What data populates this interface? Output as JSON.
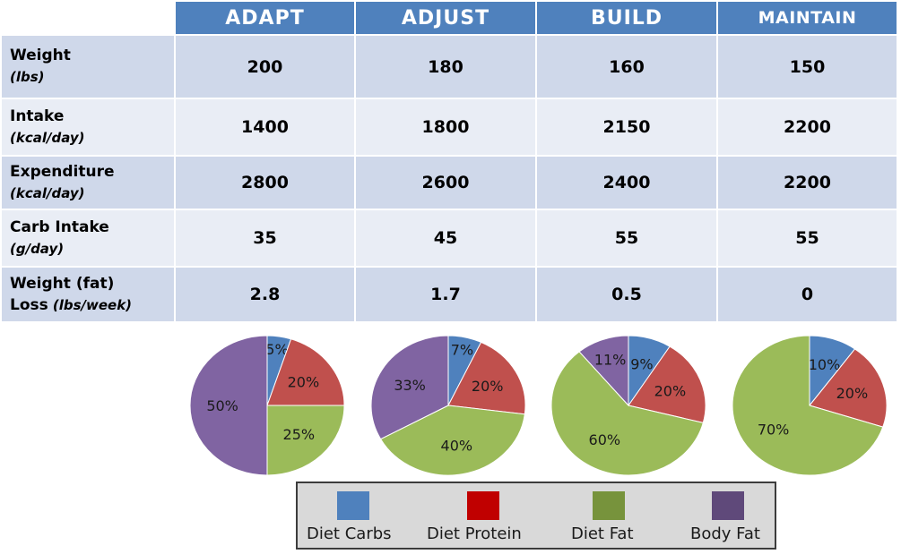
{
  "table": {
    "columns": [
      "ADAPT",
      "ADJUST",
      "BUILD",
      "MAINTAIN"
    ],
    "rows": [
      {
        "label": "Weight",
        "unit": "(lbs)",
        "values": [
          "200",
          "180",
          "160",
          "150"
        ]
      },
      {
        "label": "Intake",
        "unit": "(kcal/day)",
        "values": [
          "1400",
          "1800",
          "2150",
          "2200"
        ]
      },
      {
        "label": "Expenditure",
        "unit": "(kcal/day)",
        "values": [
          "2800",
          "2600",
          "2400",
          "2200"
        ]
      },
      {
        "label": "Carb Intake",
        "unit": "(g/day)",
        "values": [
          "35",
          "45",
          "55",
          "55"
        ]
      },
      {
        "label": "Weight (fat)",
        "label2": "Loss",
        "unit": "(lbs/week)",
        "values": [
          "2.8",
          "1.7",
          "0.5",
          "0"
        ]
      }
    ]
  },
  "chart_data": {
    "type": "pie",
    "categories": [
      "Diet Carbs",
      "Diet Protein",
      "Diet Fat",
      "Body Fat"
    ],
    "colors": [
      "#4f81bd",
      "#c0504d",
      "#9bbb59",
      "#8064a2"
    ],
    "pies": [
      {
        "stage": "ADAPT",
        "values": [
          5,
          20,
          25,
          50
        ],
        "labels": [
          "5%",
          "20%",
          "25%",
          "50%"
        ]
      },
      {
        "stage": "ADJUST",
        "values": [
          7,
          20,
          40,
          33
        ],
        "labels": [
          "7%",
          "20%",
          "40%",
          "33%"
        ]
      },
      {
        "stage": "BUILD",
        "values": [
          9,
          20,
          60,
          11
        ],
        "labels": [
          "9%",
          "20%",
          "60%",
          "11%"
        ]
      },
      {
        "stage": "MAINTAIN",
        "values": [
          10,
          20,
          70,
          0
        ],
        "labels": [
          "10%",
          "20%",
          "70%",
          ""
        ]
      }
    ],
    "legend": {
      "position": "bottom-center",
      "items": [
        {
          "label": "Diet Carbs",
          "color": "#4f81bd"
        },
        {
          "label": "Diet Protein",
          "color": "#c00000"
        },
        {
          "label": "Diet Fat",
          "color": "#77933c"
        },
        {
          "label": "Body Fat",
          "color": "#5f497a"
        }
      ]
    }
  }
}
